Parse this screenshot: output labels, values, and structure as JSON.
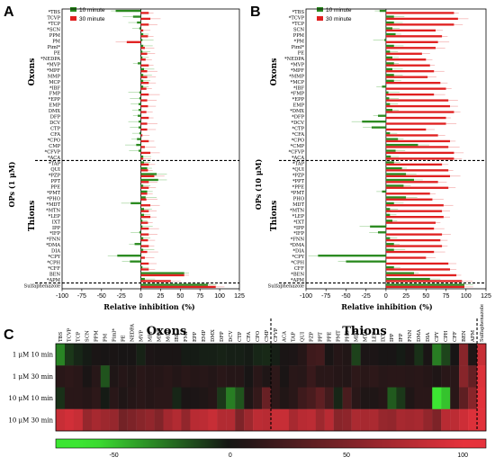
{
  "chart_data": [
    {
      "panel": "A",
      "type": "bar",
      "orientation": "horizontal",
      "ylabel": "OPs (1 μM)",
      "xlabel": "Relative inhibition (%)",
      "xlim": [
        -100,
        125
      ],
      "xticks": [
        "-100",
        "-75",
        "-50",
        "-25",
        "0",
        "25",
        "50",
        "75",
        "100",
        "125"
      ],
      "groups": {
        "oxons": "Oxons",
        "thions": "Thions"
      },
      "categories": [
        "*TBS",
        "TCVP",
        "*TCP",
        "*SCN",
        "PPM",
        "PM",
        "Piml*",
        "PE",
        "*NEDPA",
        "*MVP",
        "*MPF",
        "MMP",
        "MCP",
        "*IBF",
        "FMP",
        "*EPP",
        "EMP",
        "DMX",
        "DFP",
        "DCV",
        "CTP",
        "CFA",
        "*CPO",
        "CMP",
        "*CFVP",
        "*ACA",
        "*TAP",
        "QUI",
        "*PZP",
        "PPT",
        "PPE",
        "*PMT",
        "*PHO",
        "*MDT",
        "*MTN",
        "*LEP",
        "IXT",
        "IPP",
        "*IFP",
        "*FNN",
        "*DMA",
        "DIA",
        "*CPY",
        "*CPH",
        "*CFF",
        "BEN",
        "*APM",
        "Sulfaphenazole"
      ],
      "series": [
        {
          "name": "10 minute",
          "values": [
            -32,
            -10,
            -5,
            -2,
            3,
            2,
            3,
            2,
            2,
            -4,
            4,
            3,
            3,
            3,
            -2,
            -2,
            -3,
            -3,
            -4,
            -3,
            -3,
            -2,
            -5,
            -6,
            -3,
            3,
            4,
            8,
            20,
            22,
            3,
            8,
            6,
            -13,
            4,
            4,
            2,
            2,
            -2,
            3,
            -8,
            3,
            -30,
            -14,
            2,
            55,
            5,
            85
          ]
        },
        {
          "name": "30 minute",
          "values": [
            10,
            12,
            10,
            3,
            9,
            -18,
            5,
            8,
            6,
            10,
            8,
            8,
            10,
            7,
            10,
            8,
            9,
            7,
            10,
            8,
            8,
            2,
            10,
            5,
            12,
            3,
            10,
            9,
            17,
            10,
            10,
            8,
            7,
            12,
            10,
            12,
            9,
            10,
            10,
            9,
            10,
            8,
            5,
            10,
            10,
            55,
            38,
            95
          ]
        }
      ]
    },
    {
      "panel": "B",
      "type": "bar",
      "orientation": "horizontal",
      "ylabel": "OPs (10 μM)",
      "xlabel": "Relative inhibition (%)",
      "xlim": [
        -100,
        125
      ],
      "xticks": [
        "-100",
        "-75",
        "-50",
        "-25",
        "0",
        "25",
        "50",
        "75",
        "100",
        "125"
      ],
      "groups": {
        "oxons": "Oxons",
        "thions": "Thions"
      },
      "categories": [
        "*TBS",
        "*TCVP",
        "*TCP",
        "SCN",
        "PPM",
        "*PM",
        "Piml*",
        "PE",
        "*NEDPA",
        "*MVP",
        "*MPF",
        "*MMP",
        "*MCP",
        "*IBF",
        "*FMP",
        "*EPP",
        "EMP",
        "*DMX",
        "*DFP",
        "*DCV",
        "*CTP",
        "*CFA",
        "*CPO",
        "*CMP",
        "*CFVP",
        "*ACA",
        "*TAP",
        "*QUI",
        "*PZP",
        "*PPT",
        "*PPE",
        "*PMT",
        "PHO",
        "MDT",
        "*MTN",
        "*LEP",
        "*IXT",
        "*IPP",
        "*IFP",
        "*FNN",
        "*DMA",
        "*DIA",
        "*CPY",
        "*CPH",
        "CFF",
        "*BEN",
        "*APM",
        "Sulfaphenazole"
      ],
      "series": [
        {
          "name": "10 minute",
          "values": [
            -8,
            10,
            10,
            8,
            12,
            -2,
            10,
            5,
            8,
            10,
            8,
            10,
            10,
            -5,
            3,
            4,
            5,
            8,
            -10,
            -30,
            -18,
            5,
            15,
            40,
            12,
            6,
            10,
            20,
            25,
            35,
            22,
            -5,
            25,
            10,
            5,
            5,
            8,
            -20,
            -10,
            5,
            10,
            10,
            -85,
            -50,
            10,
            35,
            55,
            98
          ]
        },
        {
          "name": "30 minute",
          "values": [
            85,
            90,
            85,
            62,
            70,
            65,
            62,
            45,
            50,
            55,
            60,
            52,
            68,
            75,
            60,
            78,
            80,
            85,
            75,
            75,
            50,
            65,
            80,
            78,
            85,
            85,
            70,
            78,
            80,
            65,
            78,
            55,
            58,
            72,
            70,
            72,
            62,
            60,
            70,
            68,
            70,
            60,
            50,
            78,
            80,
            88,
            95,
            98
          ]
        }
      ]
    },
    {
      "panel": "C",
      "type": "heatmap",
      "groups": {
        "oxons": "Oxons",
        "thions": "Thions"
      },
      "columns": [
        "TBS",
        "TCVP",
        "TCP",
        "SCN",
        "PPM",
        "PM",
        "Piml*",
        "PE",
        "NEDPA",
        "MVP",
        "MPF",
        "MMP",
        "MCP",
        "IBF",
        "FMP",
        "EPP",
        "EMP",
        "DMX",
        "DFP",
        "DCV",
        "CTP",
        "CFA",
        "CPO",
        "CMP",
        "CFVP",
        "ACA",
        "TAP",
        "QUI",
        "PZP",
        "PPT",
        "PPE",
        "PMT",
        "PHO",
        "MDT",
        "MTN",
        "LEP",
        "IXT",
        "IPP",
        "IFP",
        "FNN",
        "DMA",
        "DIA",
        "CPY",
        "CPH",
        "CFF",
        "BEN",
        "APM",
        "Sulfaphenazole"
      ],
      "rows": [
        "1 μM 10 min",
        "1 μM 30 min",
        "10 μM 10 min",
        "10 μM 30 min"
      ],
      "colorbar_ticks": [
        "-50",
        "0",
        "50",
        "100"
      ],
      "colorbar_range": [
        -75,
        110
      ],
      "values": [
        [
          -32,
          -10,
          -5,
          -2,
          3,
          2,
          3,
          2,
          2,
          -4,
          4,
          3,
          3,
          3,
          -2,
          -2,
          -3,
          -3,
          -4,
          -3,
          -3,
          -2,
          -5,
          -6,
          -3,
          3,
          4,
          8,
          20,
          22,
          3,
          8,
          6,
          -13,
          4,
          4,
          2,
          2,
          -2,
          3,
          -8,
          3,
          -30,
          -14,
          2,
          55,
          5,
          85
        ],
        [
          10,
          12,
          10,
          3,
          9,
          -18,
          5,
          8,
          6,
          10,
          8,
          8,
          10,
          7,
          10,
          8,
          9,
          7,
          10,
          8,
          8,
          2,
          10,
          5,
          12,
          3,
          10,
          9,
          17,
          10,
          10,
          8,
          7,
          12,
          10,
          12,
          9,
          10,
          10,
          9,
          10,
          8,
          5,
          10,
          10,
          55,
          38,
          95
        ],
        [
          -8,
          10,
          10,
          8,
          12,
          -2,
          10,
          5,
          8,
          10,
          8,
          10,
          10,
          -5,
          3,
          4,
          5,
          8,
          -10,
          -30,
          -18,
          5,
          15,
          40,
          12,
          6,
          10,
          20,
          25,
          35,
          22,
          -5,
          25,
          10,
          5,
          5,
          8,
          -20,
          -10,
          5,
          10,
          10,
          -85,
          -50,
          10,
          35,
          55,
          98
        ],
        [
          85,
          90,
          85,
          62,
          70,
          65,
          62,
          45,
          50,
          55,
          60,
          52,
          68,
          75,
          60,
          78,
          80,
          85,
          75,
          75,
          50,
          65,
          80,
          78,
          85,
          85,
          70,
          78,
          80,
          65,
          78,
          55,
          58,
          72,
          70,
          72,
          62,
          60,
          70,
          68,
          70,
          60,
          50,
          78,
          80,
          88,
          95,
          98
        ]
      ]
    }
  ]
}
